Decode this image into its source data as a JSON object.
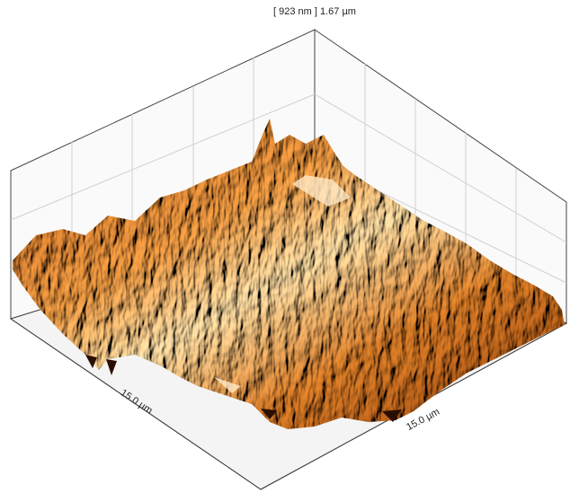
{
  "header": {
    "title": "[ 923 nm ] 1.67 µm"
  },
  "axes": {
    "left": "15.0 µm",
    "right": "15.0 µm"
  }
}
